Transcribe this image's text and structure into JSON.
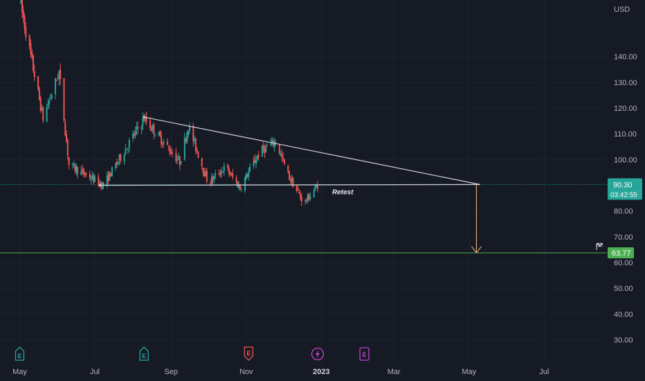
{
  "chart_data": {
    "type": "candlestick",
    "currency": "USD",
    "y_range": [
      25,
      162
    ],
    "y_ticks": [
      "140.00",
      "130.00",
      "120.00",
      "110.00",
      "100.00",
      "80.00",
      "70.00",
      "60.00",
      "50.00",
      "40.00",
      "30.00"
    ],
    "x_axis": {
      "start": "2022-04-15",
      "end": "2023-08-21",
      "ticks": [
        {
          "label": "May",
          "date": "2022-05-01",
          "bold": false
        },
        {
          "label": "Jul",
          "date": "2022-07-01",
          "bold": false
        },
        {
          "label": "Sep",
          "date": "2022-09-01",
          "bold": false
        },
        {
          "label": "Nov",
          "date": "2022-11-01",
          "bold": false
        },
        {
          "label": "2023",
          "date": "2023-01-01",
          "bold": true
        },
        {
          "label": "Mar",
          "date": "2023-03-01",
          "bold": false
        },
        {
          "label": "May",
          "date": "2023-05-01",
          "bold": false
        },
        {
          "label": "Jul",
          "date": "2023-07-01",
          "bold": false
        }
      ]
    },
    "colors": {
      "up": "#26a69a",
      "down": "#ef5350",
      "trendline": "#d1d4dc",
      "target_line": "#4caf50",
      "target_arrow": "#e5a46d",
      "current_price_line": "#26a69a",
      "earnings_icon": "#26a69a",
      "earnings_negative_icon": "#ef5350",
      "dividend_icon": "#c343c9"
    },
    "key_points": [
      {
        "date": "2022-05-01",
        "price": 162
      },
      {
        "date": "2022-05-20",
        "price": 116
      },
      {
        "date": "2022-06-02",
        "price": 134
      },
      {
        "date": "2022-06-10",
        "price": 98
      },
      {
        "date": "2022-07-08",
        "price": 90
      },
      {
        "date": "2022-08-10",
        "price": 116
      },
      {
        "date": "2022-09-08",
        "price": 99
      },
      {
        "date": "2022-09-15",
        "price": 113
      },
      {
        "date": "2022-10-01",
        "price": 91
      },
      {
        "date": "2022-10-15",
        "price": 97
      },
      {
        "date": "2022-10-27",
        "price": 89
      },
      {
        "date": "2022-11-12",
        "price": 103
      },
      {
        "date": "2022-11-25",
        "price": 107
      },
      {
        "date": "2022-12-05",
        "price": 94
      },
      {
        "date": "2022-12-18",
        "price": 83
      },
      {
        "date": "2022-12-29",
        "price": 90
      }
    ],
    "trendlines": [
      {
        "name": "descending-resistance",
        "from": {
          "date": "2022-08-10",
          "price": 116.5
        },
        "to": {
          "date": "2023-05-10",
          "price": 90.3
        }
      },
      {
        "name": "horizontal-support",
        "from": {
          "date": "2022-07-05",
          "price": 90.0
        },
        "to": {
          "date": "2023-05-10",
          "price": 90.3
        }
      }
    ],
    "projection_arrow": {
      "date": "2023-05-07",
      "from_price": 90.3,
      "to_price": 63.77
    },
    "target_line_price": 63.77,
    "current_price": 90.3,
    "annotation": {
      "text": "Retest",
      "date": "2023-01-03",
      "price": 86.5
    },
    "events": [
      {
        "type": "earnings",
        "date": "2022-05-01",
        "icon": "E"
      },
      {
        "type": "earnings",
        "date": "2022-08-10",
        "icon": "E"
      },
      {
        "type": "earnings-negative",
        "date": "2022-11-03",
        "icon": "E"
      },
      {
        "type": "split",
        "date": "2022-12-29",
        "icon": "lightning"
      },
      {
        "type": "dividend",
        "date": "2023-02-05",
        "icon": "E"
      }
    ]
  },
  "price_badge": {
    "price": "90.30",
    "countdown": "03:42:55"
  },
  "target_badge": {
    "price": "63.77"
  },
  "axis_currency": "USD",
  "annotation_label": "Retest"
}
